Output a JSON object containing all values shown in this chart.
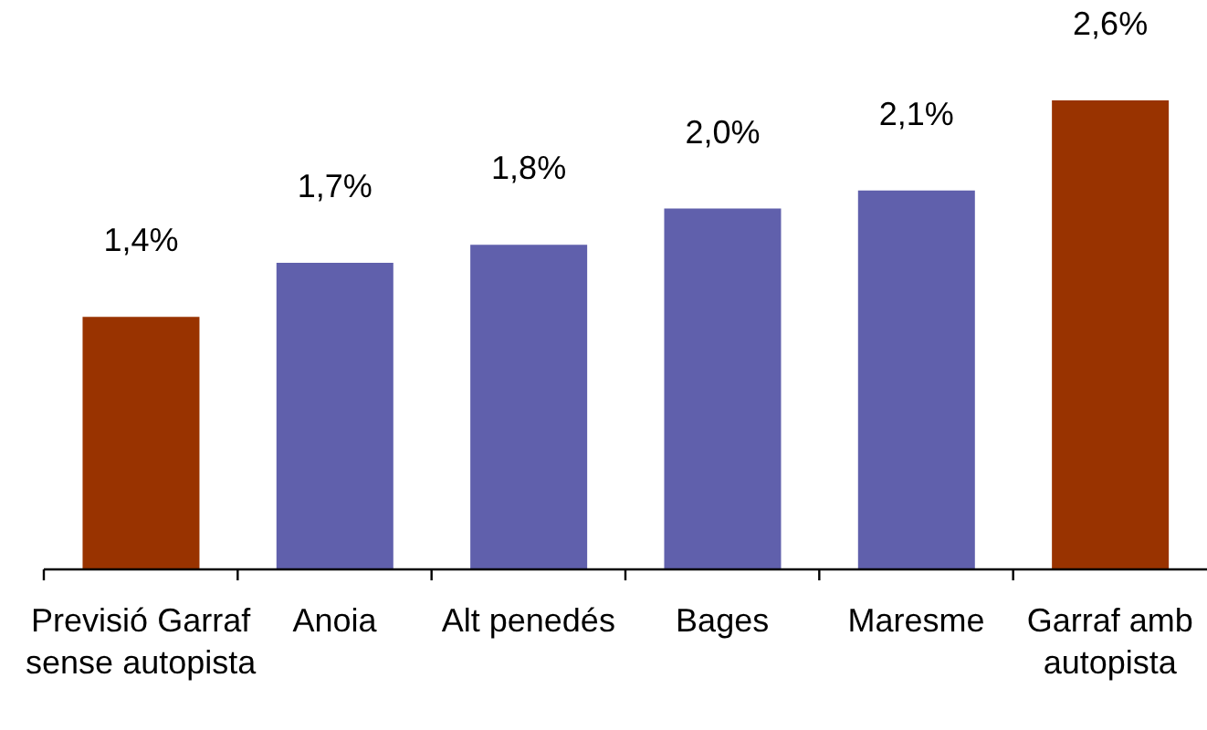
{
  "chart_data": {
    "type": "bar",
    "categories": [
      "Previsió Garraf sense autopista",
      "Anoia",
      "Alt penedés",
      "Bages",
      "Maresme",
      "Garraf amb autopista"
    ],
    "values": [
      1.4,
      1.7,
      1.8,
      2.0,
      2.1,
      2.6
    ],
    "colors": [
      "#993300",
      "#6060ac",
      "#6060ac",
      "#6060ac",
      "#6060ac",
      "#993300"
    ],
    "value_labels": [
      "1,4%",
      "1,7%",
      "1,8%",
      "2,0%",
      "2,1%",
      "2,6%"
    ]
  }
}
